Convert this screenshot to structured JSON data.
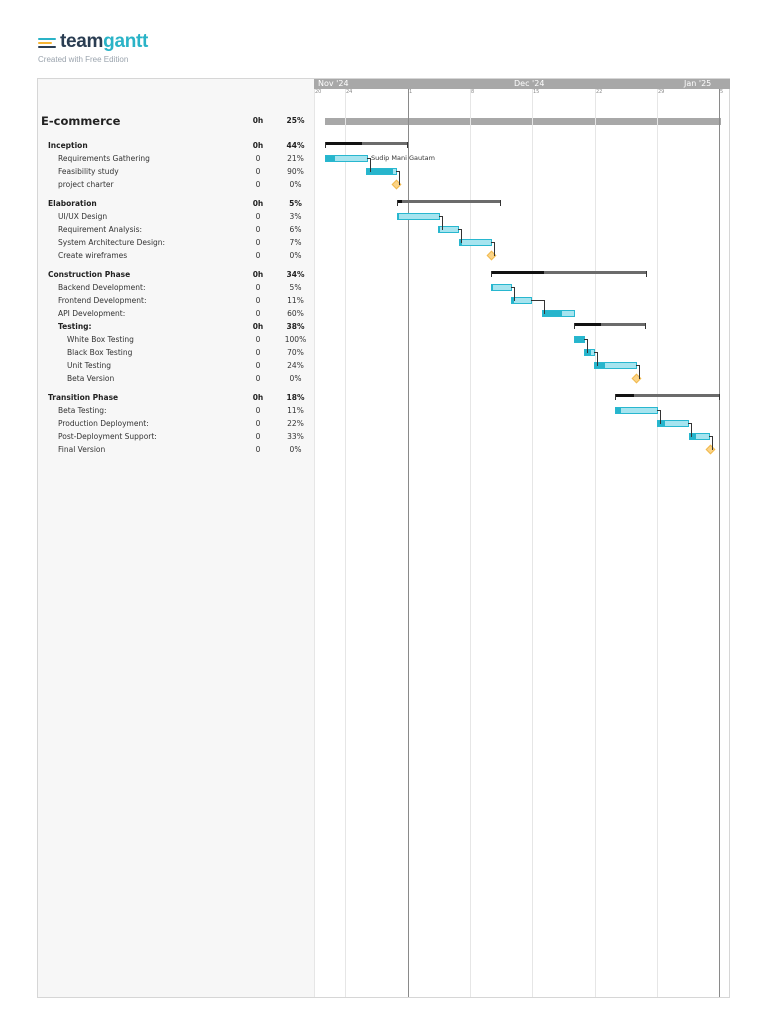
{
  "logo": {
    "word_a": "team",
    "word_b": "gantt",
    "subtitle": "Created with Free Edition",
    "colors": [
      "#f7b535",
      "#2ab3c7",
      "#2a3d52"
    ]
  },
  "timeline": {
    "months": [
      "Nov '24",
      "Dec '24",
      "Jan '25"
    ],
    "ticks": [
      "20",
      "24",
      "1",
      "8",
      "15",
      "22",
      "29",
      "5"
    ]
  },
  "project": {
    "name": "E-commerce",
    "hours": "0h",
    "percent": "25%"
  },
  "rows": [
    {
      "type": "group",
      "name": "Inception",
      "hours": "0h",
      "percent": "44%"
    },
    {
      "type": "task",
      "name": "Requirements Gathering",
      "hours": "0",
      "percent": "21%",
      "progress": 0.21,
      "assignee": "Sudip Mani Gautam"
    },
    {
      "type": "task",
      "name": "Feasibility study",
      "hours": "0",
      "percent": "90%",
      "progress": 0.9
    },
    {
      "type": "task",
      "name": "project charter",
      "hours": "0",
      "percent": "0%",
      "milestone": true
    },
    {
      "type": "group",
      "name": "Elaboration",
      "hours": "0h",
      "percent": "5%"
    },
    {
      "type": "task",
      "name": "UI/UX Design",
      "hours": "0",
      "percent": "3%",
      "progress": 0.03
    },
    {
      "type": "task",
      "name": "Requirement Analysis:",
      "hours": "0",
      "percent": "6%",
      "progress": 0.06
    },
    {
      "type": "task",
      "name": "System Architecture Design:",
      "hours": "0",
      "percent": "7%",
      "progress": 0.07
    },
    {
      "type": "task",
      "name": "Create wireframes",
      "hours": "0",
      "percent": "0%",
      "milestone": true
    },
    {
      "type": "group",
      "name": "Construction Phase",
      "hours": "0h",
      "percent": "34%"
    },
    {
      "type": "task",
      "name": "Backend Development:",
      "hours": "0",
      "percent": "5%",
      "progress": 0.05
    },
    {
      "type": "task",
      "name": "Frontend Development:",
      "hours": "0",
      "percent": "11%",
      "progress": 0.11
    },
    {
      "type": "task",
      "name": "API Development:",
      "hours": "0",
      "percent": "60%",
      "progress": 0.6
    },
    {
      "type": "subgroup",
      "name": "Testing:",
      "hours": "0h",
      "percent": "38%"
    },
    {
      "type": "subtask",
      "name": "White Box Testing",
      "hours": "0",
      "percent": "100%",
      "progress": 1.0
    },
    {
      "type": "subtask",
      "name": "Black Box Testing",
      "hours": "0",
      "percent": "70%",
      "progress": 0.7
    },
    {
      "type": "subtask",
      "name": "Unit Testing",
      "hours": "0",
      "percent": "24%",
      "progress": 0.24
    },
    {
      "type": "subtask",
      "name": "Beta Version",
      "hours": "0",
      "percent": "0%",
      "milestone": true
    },
    {
      "type": "group",
      "name": "Transition Phase",
      "hours": "0h",
      "percent": "18%"
    },
    {
      "type": "task",
      "name": "Beta Testing:",
      "hours": "0",
      "percent": "11%",
      "progress": 0.11
    },
    {
      "type": "task",
      "name": "Production Deployment:",
      "hours": "0",
      "percent": "22%",
      "progress": 0.22
    },
    {
      "type": "task",
      "name": "Post-Deployment Support:",
      "hours": "0",
      "percent": "33%",
      "progress": 0.33
    },
    {
      "type": "task",
      "name": "Final Version",
      "hours": "0",
      "percent": "0%",
      "milestone": true
    }
  ]
}
